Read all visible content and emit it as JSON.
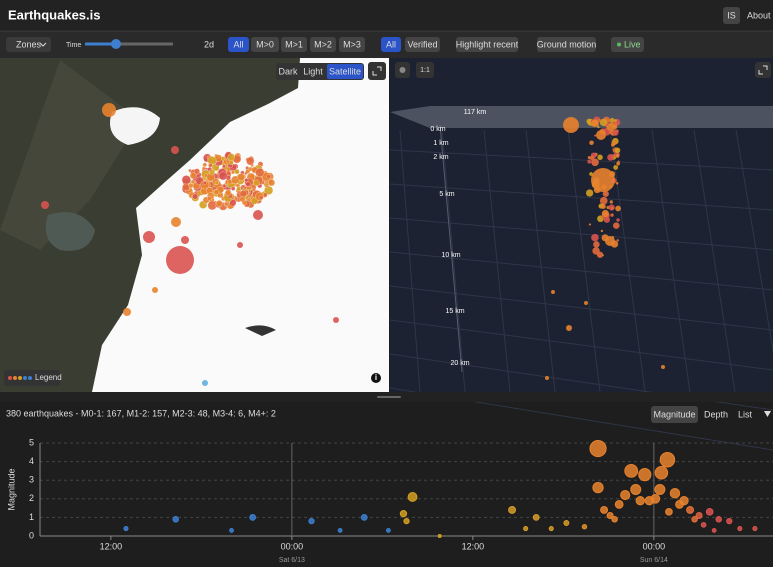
{
  "header": {
    "title": "Earthquakes.is",
    "lang": "IS",
    "about": "About"
  },
  "toolbar": {
    "zones": "Zones",
    "time_label": "Time",
    "time_range": "2d",
    "magnitude_filters": [
      "All",
      "M>0",
      "M>1",
      "M>2",
      "M>3"
    ],
    "quality_filters": [
      "All",
      "Verified"
    ],
    "highlight": "Highlight recent",
    "ground_motion": "Ground motion",
    "live": "Live"
  },
  "map": {
    "styles": [
      "Dark",
      "Light",
      "Satellite"
    ],
    "legend": "Legend"
  },
  "view3d": {
    "scale": "1:1",
    "depth_labels": [
      "117 km",
      "0 km",
      "1 km",
      "2 km",
      "5 km",
      "10 km",
      "15 km",
      "20 km"
    ]
  },
  "summary": "380 earthquakes - M0-1: 167, M1-2: 157, M2-3: 48, M3-4: 6, M4+: 2",
  "tabs": [
    "Magnitude",
    "Depth",
    "List"
  ],
  "chart_data": {
    "type": "scatter",
    "y_label": "Magnitude",
    "x": [
      -11.0,
      -7.7,
      -4.0,
      -2.6,
      1.3,
      3.2,
      4.8,
      6.4,
      7.4,
      7.6,
      8.0,
      9.8,
      14.6,
      15.5,
      16.2,
      17.2,
      18.2,
      19.4,
      20.3,
      20.3,
      20.7,
      21.4,
      22.5,
      22.8,
      23.4,
      23.7,
      24.4,
      24.9,
      24.5,
      25.4,
      25.7,
      26.4,
      27.0,
      27.7,
      28.3,
      29.0,
      29.7,
      30.7,
      21.1,
      21.7,
      22.1,
      23.1,
      24.1,
      25.0,
      26.0,
      26.7,
      27.3,
      28.0
    ],
    "values": [
      0.4,
      0.9,
      0.3,
      1.0,
      0.8,
      0.3,
      1.0,
      0.3,
      1.2,
      0.8,
      2.1,
      0.0,
      1.4,
      0.4,
      1.0,
      0.4,
      0.7,
      0.5,
      4.7,
      2.6,
      1.4,
      0.9,
      3.5,
      2.5,
      3.3,
      1.9,
      2.5,
      4.1,
      3.4,
      2.3,
      1.7,
      1.4,
      1.1,
      1.3,
      0.9,
      0.8,
      0.4,
      0.4,
      1.1,
      1.7,
      2.2,
      1.9,
      2.0,
      1.3,
      1.9,
      0.9,
      0.6,
      0.3
    ],
    "colors": [
      "#3d7fd0",
      "#3d7fd0",
      "#3d7fd0",
      "#3d7fd0",
      "#3d7fd0",
      "#3d7fd0",
      "#3d7fd0",
      "#3d7fd0",
      "#d4a020",
      "#d4a020",
      "#d4a020",
      "#d4a020",
      "#d49a28",
      "#d49a28",
      "#d49a28",
      "#d49a28",
      "#d49a28",
      "#e0902a",
      "#e8822e",
      "#e8822e",
      "#e8822e",
      "#e8822e",
      "#e8822e",
      "#e8822e",
      "#e8822e",
      "#e8822e",
      "#e8822e",
      "#e8822e",
      "#e8822e",
      "#e8822e",
      "#e8822e",
      "#e2703a",
      "#dd6040",
      "#d9534f",
      "#d9534f",
      "#d9534f",
      "#d9534f",
      "#d9534f",
      "#e8822e",
      "#e8822e",
      "#e8822e",
      "#e8822e",
      "#e8822e",
      "#e8822e",
      "#e8822e",
      "#e2703a",
      "#d9534f",
      "#d9534f"
    ],
    "xlim": [
      -16.7,
      31.9
    ],
    "ylim": [
      0,
      5
    ],
    "yticks": [
      0,
      1,
      2,
      3,
      4,
      5
    ],
    "xticks": [
      {
        "value": -12,
        "label": "12:00"
      },
      {
        "value": 0,
        "label": "00:00"
      },
      {
        "value": 12,
        "label": "12:00"
      },
      {
        "value": 24,
        "label": "00:00"
      }
    ],
    "day_labels": [
      {
        "value": 0,
        "label": "Sat 6/13"
      },
      {
        "value": 24,
        "label": "Sun 6/14"
      }
    ],
    "grid": true
  }
}
